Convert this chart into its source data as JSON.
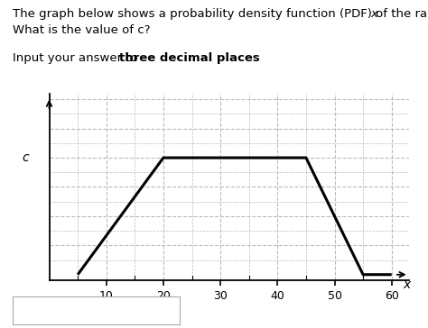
{
  "pdf_x": [
    5,
    5,
    20,
    45,
    55,
    60
  ],
  "pdf_y": [
    0,
    0,
    1,
    1,
    0,
    0
  ],
  "c_value": 1.0,
  "x_ticks": [
    10,
    20,
    30,
    40,
    50,
    60
  ],
  "x_tick_minor": [
    5,
    15,
    25,
    35,
    45,
    55
  ],
  "x_label": "x",
  "y_label": "c",
  "xlim": [
    0,
    63
  ],
  "ylim": [
    -0.05,
    1.55
  ],
  "grid_major_x": [
    10,
    20,
    30,
    40,
    50,
    60
  ],
  "grid_major_y": [
    0.25,
    0.5,
    0.75,
    1.0,
    1.25,
    1.5
  ],
  "grid_minor_x": [
    5,
    15,
    25,
    35,
    45,
    55
  ],
  "grid_minor_y": [
    0.125,
    0.375,
    0.625,
    0.875,
    1.125,
    1.375
  ],
  "grid_color": "#bbbbbb",
  "line_color": "#000000",
  "background_color": "#ffffff",
  "line_width": 2.2,
  "text_fontsize": 9.5
}
